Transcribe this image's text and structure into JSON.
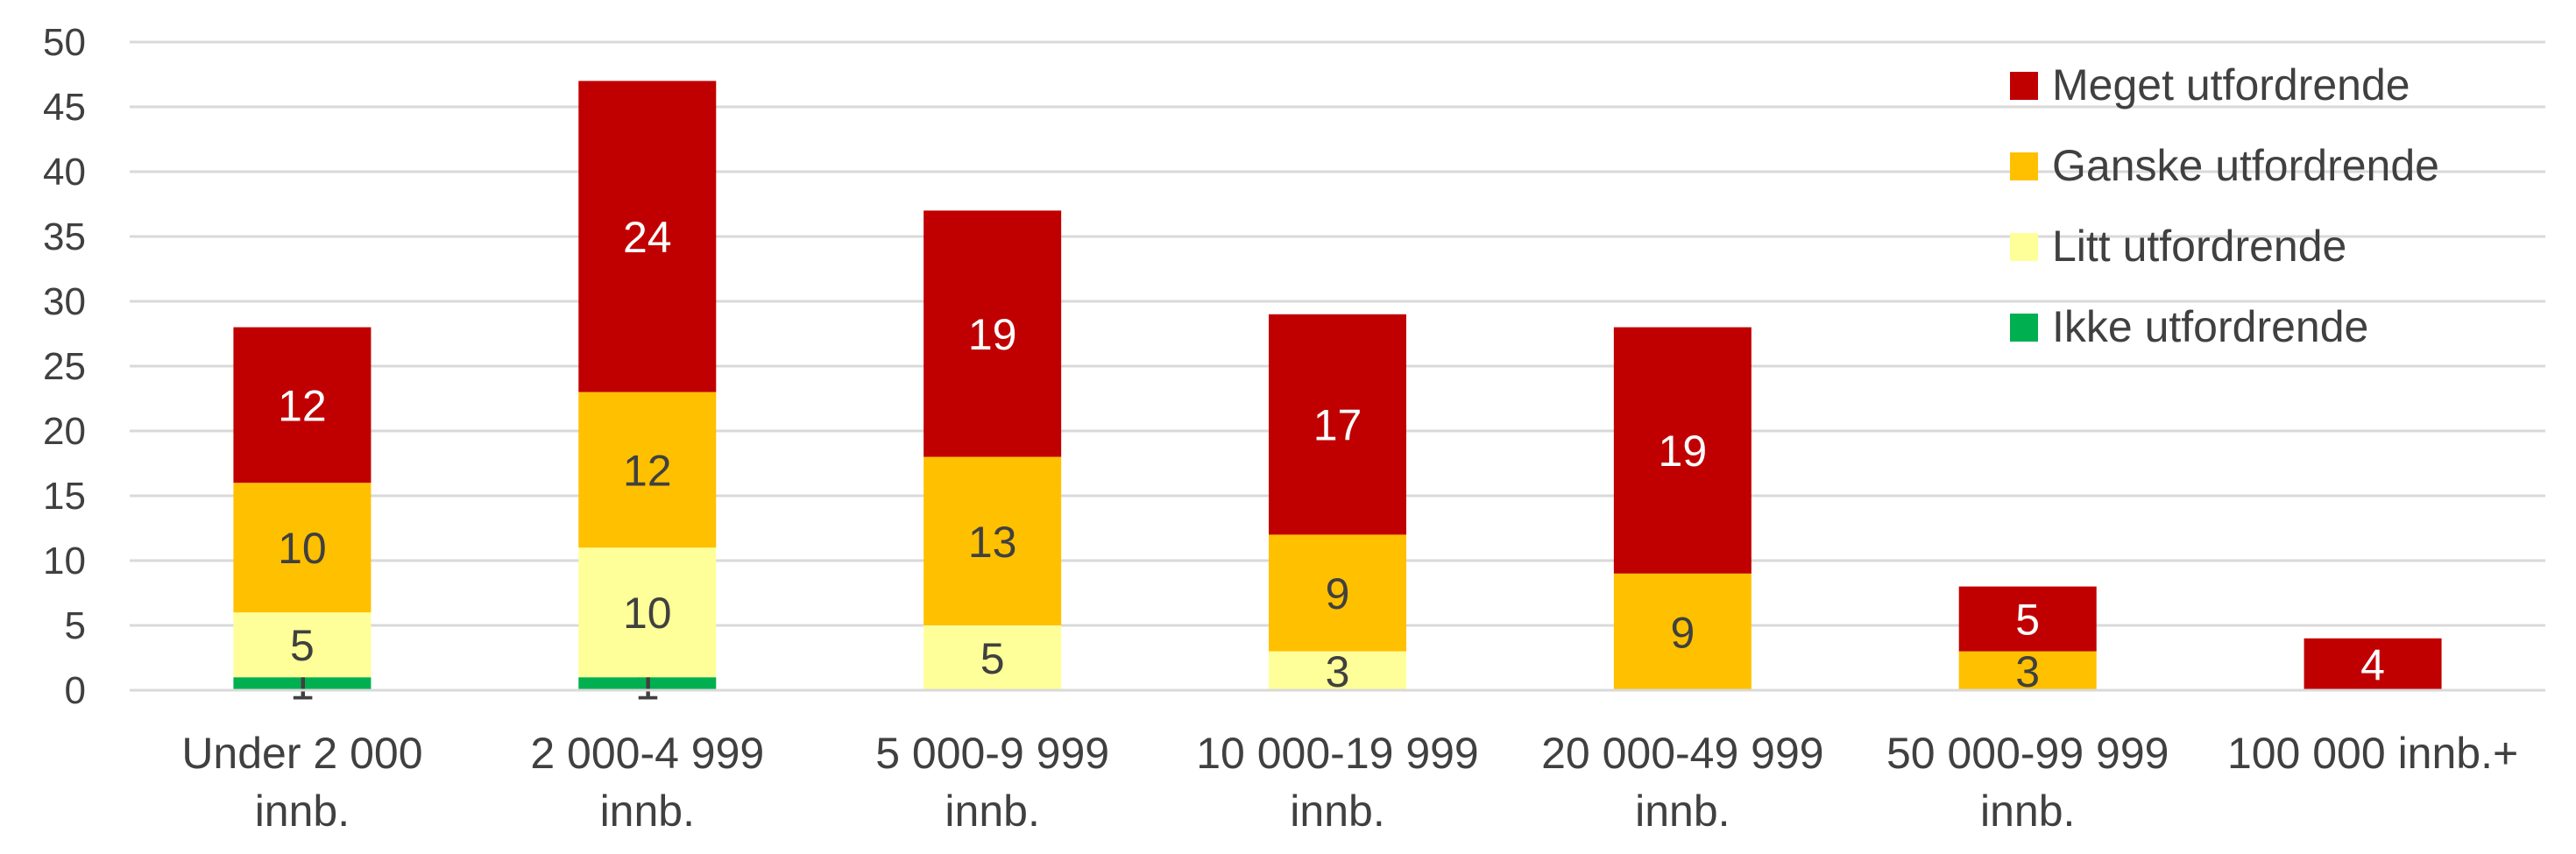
{
  "chart_data": {
    "type": "bar",
    "stacked": true,
    "title": "",
    "xlabel": "",
    "ylabel": "",
    "ylim": [
      0,
      50
    ],
    "yticks": [
      "0",
      "5",
      "10",
      "15",
      "20",
      "25",
      "30",
      "35",
      "40",
      "45",
      "50"
    ],
    "grid": true,
    "legend_position": "top-right",
    "categories": [
      [
        "Under 2 000",
        "innb."
      ],
      [
        "2 000-4 999",
        "innb."
      ],
      [
        "5 000-9 999",
        "innb."
      ],
      [
        "10 000-19 999",
        "innb."
      ],
      [
        "20 000-49 999",
        "innb."
      ],
      [
        "50 000-99 999",
        "innb."
      ],
      [
        "100 000 innb.+"
      ]
    ],
    "series": [
      {
        "name": "Ikke utfordrende",
        "color": "#00b050",
        "label_color": "#404040",
        "values": [
          1,
          1,
          0,
          0,
          0,
          0,
          0
        ]
      },
      {
        "name": "Litt utfordrende",
        "color": "#ffff99",
        "label_color": "#404040",
        "values": [
          5,
          10,
          5,
          3,
          0,
          0,
          0
        ]
      },
      {
        "name": "Ganske utfordrende",
        "color": "#ffc000",
        "label_color": "#404040",
        "values": [
          10,
          12,
          13,
          9,
          9,
          3,
          0
        ]
      },
      {
        "name": "Meget utfordrende",
        "color": "#c00000",
        "label_color": "#ffffff",
        "values": [
          12,
          24,
          19,
          17,
          19,
          5,
          4
        ]
      }
    ],
    "legend_order": [
      "Meget utfordrende",
      "Ganske utfordrende",
      "Litt utfordrende",
      "Ikke utfordrende"
    ]
  }
}
